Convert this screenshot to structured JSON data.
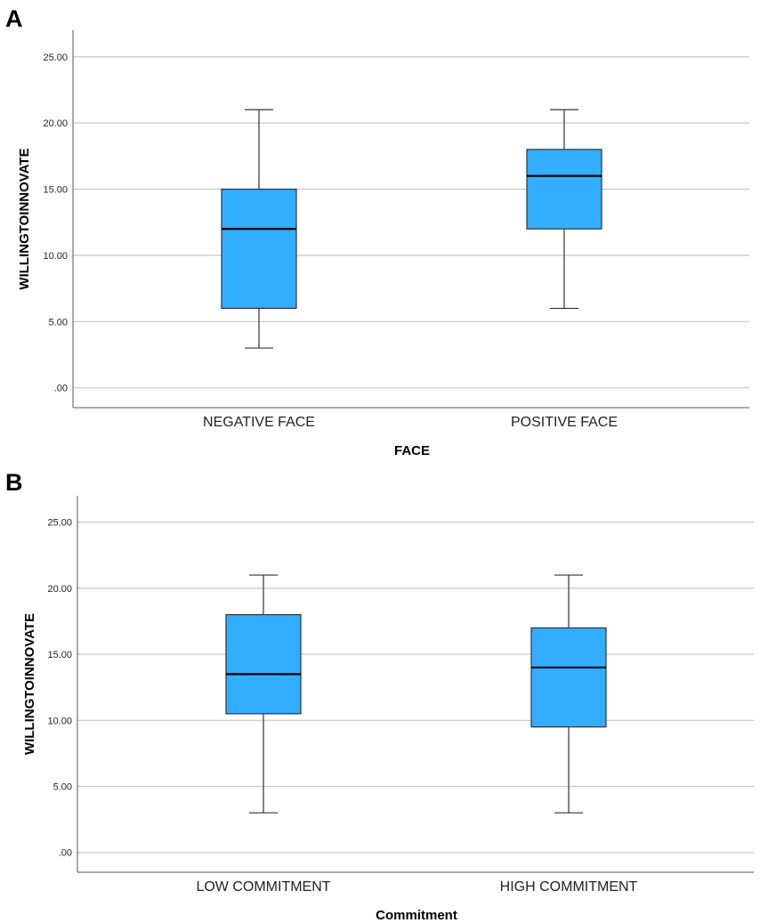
{
  "chart_data": [
    {
      "type": "boxplot",
      "panel_label": "A",
      "title": "",
      "xlabel": "FACE",
      "ylabel": "WILLINGTOINNOVATE",
      "ylim": [
        -1.5,
        27
      ],
      "yticks": [
        0,
        5,
        10,
        15,
        20,
        25
      ],
      "ytick_labels": [
        ".00",
        "5.00",
        "10.00",
        "15.00",
        "20.00",
        "25.00"
      ],
      "grid": true,
      "categories": [
        "NEGATIVE FACE",
        "POSITIVE FACE"
      ],
      "boxes": [
        {
          "category": "NEGATIVE FACE",
          "whisker_low": 3,
          "q1": 6,
          "median": 12,
          "q3": 15,
          "whisker_high": 21
        },
        {
          "category": "POSITIVE FACE",
          "whisker_low": 6,
          "q1": 12,
          "median": 16,
          "q3": 18,
          "whisker_high": 21
        }
      ]
    },
    {
      "type": "boxplot",
      "panel_label": "B",
      "title": "",
      "xlabel": "Commitment",
      "ylabel": "WILLINGTOINNOVATE",
      "ylim": [
        -1.5,
        27
      ],
      "yticks": [
        0,
        5,
        10,
        15,
        20,
        25
      ],
      "ytick_labels": [
        ".00",
        "5.00",
        "10.00",
        "15.00",
        "20.00",
        "25.00"
      ],
      "grid": true,
      "categories": [
        "LOW COMMITMENT",
        "HIGH COMMITMENT"
      ],
      "boxes": [
        {
          "category": "LOW COMMITMENT",
          "whisker_low": 3,
          "q1": 10.5,
          "median": 13.5,
          "q3": 18,
          "whisker_high": 21
        },
        {
          "category": "HIGH COMMITMENT",
          "whisker_low": 3,
          "q1": 9.5,
          "median": 14,
          "q3": 17,
          "whisker_high": 21
        }
      ]
    }
  ],
  "colors": {
    "box_fill": "#33adff",
    "box_stroke": "#333333",
    "median": "#000000",
    "grid": "#c8c8c8",
    "axis": "#555555",
    "whisker": "#333333"
  }
}
